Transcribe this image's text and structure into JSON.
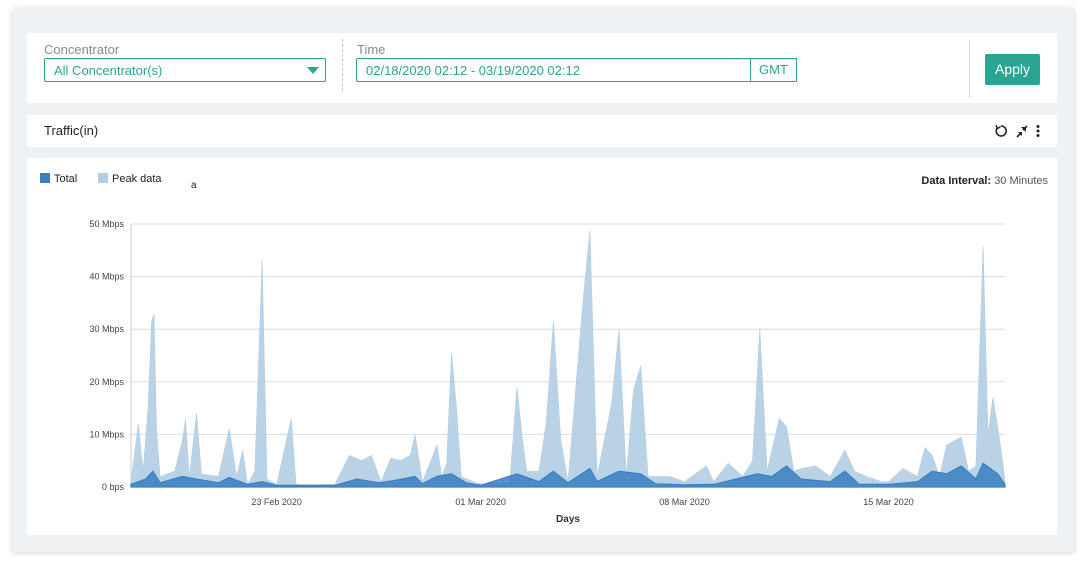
{
  "filters": {
    "concentrator_label": "Concentrator",
    "concentrator_value": "All Concentrator(s)",
    "time_label": "Time",
    "time_value": "02/18/2020 02:12 - 03/19/2020 02:12",
    "timezone": "GMT",
    "apply_label": "Apply"
  },
  "panel": {
    "title": "Traffic(in)",
    "icons": [
      "refresh-icon",
      "collapse-arrows-icon",
      "kebab-menu-icon"
    ]
  },
  "legend": {
    "total_label": "Total",
    "peak_label": "Peak data",
    "stray_glyph": "a"
  },
  "interval": {
    "label": "Data Interval:",
    "value": "30 Minutes"
  },
  "colors": {
    "accent": "#2aa594",
    "total": "#3a7fc1",
    "peak": "#b3cde3"
  },
  "chart_data": {
    "type": "area",
    "xlabel": "Days",
    "x_range": [
      "2020-02-18",
      "2020-03-19"
    ],
    "x_ticks": [
      "23 Feb 2020",
      "01 Mar 2020",
      "08 Mar 2020",
      "15 Mar 2020"
    ],
    "y_ticks": [
      "0 bps",
      "10 Mbps",
      "20 Mbps",
      "30 Mbps",
      "40 Mbps",
      "50 Mbps"
    ],
    "ylim": [
      0,
      50
    ],
    "y_unit": "Mbps",
    "grid": true,
    "legend_position": "top-left",
    "series": [
      {
        "name": "Peak data",
        "points": [
          [
            "2020-02-18",
            1.0
          ],
          [
            "2020-02-18T06:00",
            12.0
          ],
          [
            "2020-02-18T10:00",
            3.0
          ],
          [
            "2020-02-18T14:00",
            15.0
          ],
          [
            "2020-02-18T17:00",
            31.5
          ],
          [
            "2020-02-18T19:00",
            32.8
          ],
          [
            "2020-02-18T21:00",
            11.0
          ],
          [
            "2020-02-19",
            2.0
          ],
          [
            "2020-02-19T12:00",
            3.0
          ],
          [
            "2020-02-19T18:00",
            8.5
          ],
          [
            "2020-02-19T21:00",
            12.8
          ],
          [
            "2020-02-20",
            2.0
          ],
          [
            "2020-02-20T06:00",
            14.0
          ],
          [
            "2020-02-20T10:00",
            2.5
          ],
          [
            "2020-02-21",
            2.0
          ],
          [
            "2020-02-21T06:00",
            8.0
          ],
          [
            "2020-02-21T09:00",
            11.0
          ],
          [
            "2020-02-21T15:00",
            2.0
          ],
          [
            "2020-02-21T20:00",
            7.0
          ],
          [
            "2020-02-22",
            0.5
          ],
          [
            "2020-02-22T06:00",
            3.0
          ],
          [
            "2020-02-22T12:00",
            43.2
          ],
          [
            "2020-02-22T16:00",
            1.5
          ],
          [
            "2020-02-23",
            0.5
          ],
          [
            "2020-02-23T12:00",
            13.0
          ],
          [
            "2020-02-23T16:00",
            0.5
          ],
          [
            "2020-02-24",
            0.4
          ],
          [
            "2020-02-25",
            0.5
          ],
          [
            "2020-02-25T12:00",
            6.0
          ],
          [
            "2020-02-25T22:00",
            5.0
          ],
          [
            "2020-02-26T06:00",
            6.0
          ],
          [
            "2020-02-26T14:00",
            1.0
          ],
          [
            "2020-02-26T22:00",
            5.5
          ],
          [
            "2020-02-27T06:00",
            5.0
          ],
          [
            "2020-02-27T14:00",
            6.0
          ],
          [
            "2020-02-27T18:00",
            10.0
          ],
          [
            "2020-02-28",
            1.0
          ],
          [
            "2020-02-28T08:00",
            5.5
          ],
          [
            "2020-02-28T12:00",
            8.0
          ],
          [
            "2020-02-28T16:00",
            2.0
          ],
          [
            "2020-02-28T20:00",
            4.5
          ],
          [
            "2020-02-29T00:00",
            25.5
          ],
          [
            "2020-02-29T04:00",
            15.5
          ],
          [
            "2020-02-29T08:00",
            2.0
          ],
          [
            "2020-02-29T20:00",
            0.8
          ],
          [
            "2020-03-01",
            0.6
          ],
          [
            "2020-03-02",
            0.8
          ],
          [
            "2020-03-02T06:00",
            19.0
          ],
          [
            "2020-03-02T10:00",
            10.0
          ],
          [
            "2020-03-02T14:00",
            3.0
          ],
          [
            "2020-03-03",
            3.0
          ],
          [
            "2020-03-03T06:00",
            12.0
          ],
          [
            "2020-03-03T12:00",
            31.5
          ],
          [
            "2020-03-03T18:00",
            9.0
          ],
          [
            "2020-03-04",
            1.0
          ],
          [
            "2020-03-04T12:00",
            34.5
          ],
          [
            "2020-03-04T18:00",
            48.8
          ],
          [
            "2020-03-05",
            2.0
          ],
          [
            "2020-03-05T12:00",
            16.0
          ],
          [
            "2020-03-05T18:00",
            30.0
          ],
          [
            "2020-03-06",
            2.0
          ],
          [
            "2020-03-06T06:00",
            18.5
          ],
          [
            "2020-03-06T12:00",
            23.0
          ],
          [
            "2020-03-06T18:00",
            2.0
          ],
          [
            "2020-03-07T12:00",
            2.0
          ],
          [
            "2020-03-08",
            1.0
          ],
          [
            "2020-03-08T18:00",
            4.0
          ],
          [
            "2020-03-09",
            1.0
          ],
          [
            "2020-03-09T12:00",
            4.5
          ],
          [
            "2020-03-10",
            2.0
          ],
          [
            "2020-03-10T08:00",
            5.0
          ],
          [
            "2020-03-10T14:00",
            30.2
          ],
          [
            "2020-03-10T20:00",
            3.0
          ],
          [
            "2020-03-11T06:00",
            13.0
          ],
          [
            "2020-03-11T12:00",
            11.5
          ],
          [
            "2020-03-11T18:00",
            3.0
          ],
          [
            "2020-03-12",
            3.5
          ],
          [
            "2020-03-12T12:00",
            4.0
          ],
          [
            "2020-03-13",
            2.0
          ],
          [
            "2020-03-13T12:00",
            7.0
          ],
          [
            "2020-03-13T20:00",
            3.0
          ],
          [
            "2020-03-14T06:00",
            2.0
          ],
          [
            "2020-03-14T18:00",
            1.0
          ],
          [
            "2020-03-15",
            1.0
          ],
          [
            "2020-03-15T12:00",
            3.5
          ],
          [
            "2020-03-16",
            2.0
          ],
          [
            "2020-03-16T06:00",
            7.5
          ],
          [
            "2020-03-16T12:00",
            6.0
          ],
          [
            "2020-03-16T18:00",
            2.0
          ],
          [
            "2020-03-17",
            8.0
          ],
          [
            "2020-03-17T12:00",
            9.5
          ],
          [
            "2020-03-17T18:00",
            3.0
          ],
          [
            "2020-03-18",
            4.0
          ],
          [
            "2020-03-18T06:00",
            45.8
          ],
          [
            "2020-03-18T10:00",
            10.0
          ],
          [
            "2020-03-18T14:00",
            17.0
          ],
          [
            "2020-03-18T18:00",
            11.5
          ],
          [
            "2020-03-18T22:00",
            5.0
          ],
          [
            "2020-03-19",
            1.0
          ]
        ]
      },
      {
        "name": "Total",
        "points": [
          [
            "2020-02-18",
            0.5
          ],
          [
            "2020-02-18T12:00",
            1.5
          ],
          [
            "2020-02-18T18:00",
            3.0
          ],
          [
            "2020-02-19",
            0.8
          ],
          [
            "2020-02-19T18:00",
            2.0
          ],
          [
            "2020-02-20T06:00",
            1.5
          ],
          [
            "2020-02-21",
            0.8
          ],
          [
            "2020-02-21T09:00",
            1.8
          ],
          [
            "2020-02-22",
            0.5
          ],
          [
            "2020-02-22T12:00",
            1.0
          ],
          [
            "2020-02-23",
            0.3
          ],
          [
            "2020-02-25",
            0.3
          ],
          [
            "2020-02-25T18:00",
            1.5
          ],
          [
            "2020-02-26T12:00",
            0.8
          ],
          [
            "2020-02-27",
            1.2
          ],
          [
            "2020-02-27T18:00",
            2.0
          ],
          [
            "2020-02-28",
            0.6
          ],
          [
            "2020-02-28T12:00",
            2.0
          ],
          [
            "2020-02-29T00:00",
            2.5
          ],
          [
            "2020-02-29T12:00",
            0.8
          ],
          [
            "2020-03-01",
            0.3
          ],
          [
            "2020-03-02T06:00",
            2.5
          ],
          [
            "2020-03-03",
            1.0
          ],
          [
            "2020-03-03T12:00",
            3.0
          ],
          [
            "2020-03-04",
            0.8
          ],
          [
            "2020-03-04T18:00",
            3.5
          ],
          [
            "2020-03-05",
            1.0
          ],
          [
            "2020-03-05T18:00",
            3.0
          ],
          [
            "2020-03-06T12:00",
            2.5
          ],
          [
            "2020-03-07",
            0.6
          ],
          [
            "2020-03-08",
            0.4
          ],
          [
            "2020-03-09",
            0.5
          ],
          [
            "2020-03-10T12:00",
            2.5
          ],
          [
            "2020-03-11",
            2.0
          ],
          [
            "2020-03-11T12:00",
            4.0
          ],
          [
            "2020-03-12",
            1.5
          ],
          [
            "2020-03-13",
            1.0
          ],
          [
            "2020-03-13T12:00",
            3.0
          ],
          [
            "2020-03-14",
            0.5
          ],
          [
            "2020-03-15",
            0.5
          ],
          [
            "2020-03-16",
            1.0
          ],
          [
            "2020-03-16T12:00",
            3.0
          ],
          [
            "2020-03-17",
            2.5
          ],
          [
            "2020-03-17T12:00",
            4.0
          ],
          [
            "2020-03-18",
            1.5
          ],
          [
            "2020-03-18T06:00",
            4.5
          ],
          [
            "2020-03-18T18:00",
            2.5
          ],
          [
            "2020-03-19",
            0.5
          ]
        ]
      }
    ]
  }
}
